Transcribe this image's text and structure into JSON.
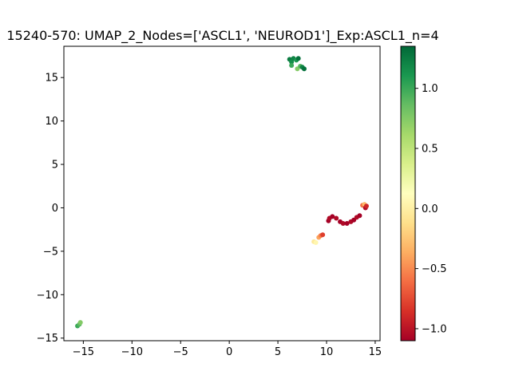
{
  "chart_data": {
    "type": "scatter",
    "title": "15240-570: UMAP_2_Nodes=['ASCL1', 'NEUROD1']_Exp:ASCL1_n=4",
    "xlabel": "",
    "ylabel": "",
    "xlim": [
      -17,
      15.5
    ],
    "ylim": [
      -15.3,
      18.6
    ],
    "xticks": [
      -15,
      -10,
      -5,
      0,
      5,
      10,
      15
    ],
    "yticks": [
      -15,
      -10,
      -5,
      0,
      5,
      10,
      15
    ],
    "grid": false,
    "colorbar": {
      "colormap": "RdYlGn",
      "range": [
        -1.1,
        1.35
      ],
      "ticks": [
        -1.0,
        -0.5,
        0.0,
        0.5,
        1.0
      ],
      "tick_labels": [
        "−1.0",
        "−0.5",
        "0.0",
        "0.5",
        "1.0"
      ]
    },
    "points": [
      {
        "x": 6.2,
        "y": 17.1,
        "c": 1.25
      },
      {
        "x": 6.4,
        "y": 16.8,
        "c": 1.15
      },
      {
        "x": 6.6,
        "y": 17.2,
        "c": 1.2
      },
      {
        "x": 6.9,
        "y": 17.0,
        "c": 1.1
      },
      {
        "x": 7.1,
        "y": 17.2,
        "c": 1.3
      },
      {
        "x": 6.4,
        "y": 16.4,
        "c": 1.0
      },
      {
        "x": 7.0,
        "y": 16.0,
        "c": 0.75
      },
      {
        "x": 7.3,
        "y": 16.3,
        "c": 0.9
      },
      {
        "x": 7.5,
        "y": 16.2,
        "c": 1.2
      },
      {
        "x": 7.7,
        "y": 16.0,
        "c": 1.3
      },
      {
        "x": 10.2,
        "y": -1.5,
        "c": -1.1
      },
      {
        "x": 10.3,
        "y": -1.2,
        "c": -1.05
      },
      {
        "x": 10.6,
        "y": -1.0,
        "c": -1.1
      },
      {
        "x": 11.0,
        "y": -1.2,
        "c": -1.05
      },
      {
        "x": 11.4,
        "y": -1.6,
        "c": -1.1
      },
      {
        "x": 11.7,
        "y": -1.8,
        "c": -1.05
      },
      {
        "x": 12.1,
        "y": -1.8,
        "c": -1.1
      },
      {
        "x": 12.5,
        "y": -1.6,
        "c": -1.05
      },
      {
        "x": 12.8,
        "y": -1.4,
        "c": -1.1
      },
      {
        "x": 13.1,
        "y": -1.1,
        "c": -1.05
      },
      {
        "x": 13.4,
        "y": -0.9,
        "c": -1.1
      },
      {
        "x": 13.7,
        "y": 0.3,
        "c": -0.6
      },
      {
        "x": 13.9,
        "y": 0.4,
        "c": -0.3
      },
      {
        "x": 14.0,
        "y": 0.0,
        "c": -1.05
      },
      {
        "x": 14.1,
        "y": 0.2,
        "c": -0.9
      },
      {
        "x": 8.7,
        "y": -3.9,
        "c": -0.05
      },
      {
        "x": 8.9,
        "y": -4.0,
        "c": 0.05
      },
      {
        "x": 9.2,
        "y": -3.4,
        "c": -0.4
      },
      {
        "x": 9.4,
        "y": -3.2,
        "c": -0.55
      },
      {
        "x": 9.6,
        "y": -3.1,
        "c": -0.8
      },
      {
        "x": -15.6,
        "y": -13.6,
        "c": 1.0
      },
      {
        "x": -15.4,
        "y": -13.4,
        "c": 0.9
      },
      {
        "x": -15.3,
        "y": -13.2,
        "c": 0.75
      }
    ]
  }
}
